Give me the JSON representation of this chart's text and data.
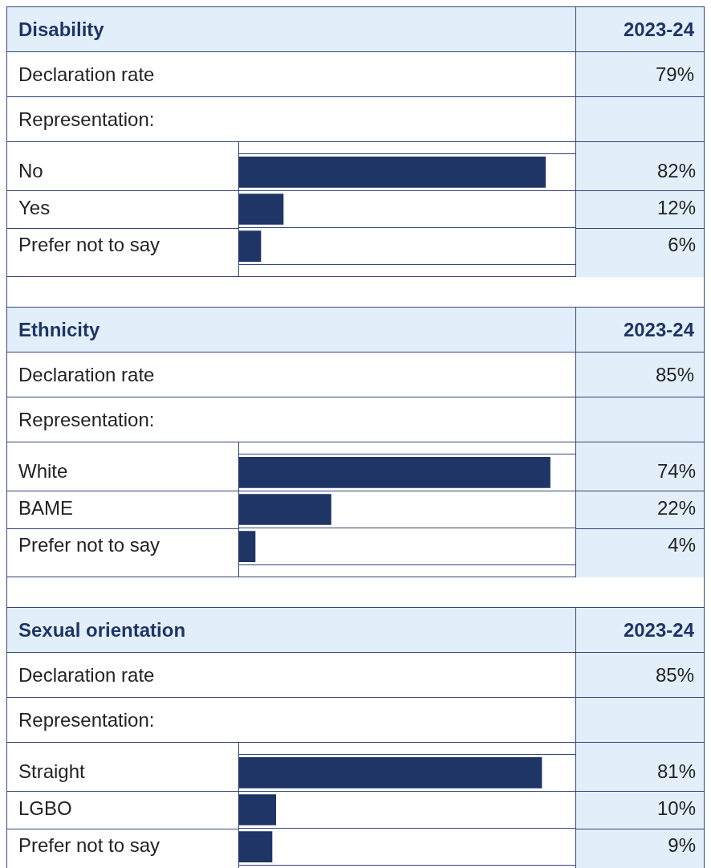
{
  "chart_data": [
    {
      "type": "bar",
      "orientation": "horizontal",
      "title": "Disability",
      "annotations": [
        "2023-24",
        "Declaration rate",
        "79%",
        "Representation:"
      ],
      "categories": [
        "No",
        "Yes",
        "Prefer not to say"
      ],
      "values": [
        82,
        12,
        6
      ],
      "value_labels": [
        "82%",
        "12%",
        "6%"
      ],
      "color": "#1f3566",
      "tick_labels": "y",
      "grid": "y",
      "legend": false
    },
    {
      "type": "bar",
      "orientation": "horizontal",
      "title": "Ethnicity",
      "annotations": [
        "2023-24",
        "Declaration rate",
        "85%",
        "Representation:"
      ],
      "categories": [
        "White",
        "BAME",
        "Prefer not to say"
      ],
      "values": [
        74,
        22,
        4
      ],
      "value_labels": [
        "74%",
        "22%",
        "4%"
      ],
      "color": "#1f3566",
      "tick_labels": "y",
      "grid": "y",
      "legend": false
    },
    {
      "type": "bar",
      "orientation": "horizontal",
      "title": "Sexual orientation",
      "annotations": [
        "2023-24",
        "Declaration rate",
        "85%",
        "Representation:"
      ],
      "categories": [
        "Straight",
        "LGBO",
        "Prefer not to say"
      ],
      "values": [
        81,
        10,
        9
      ],
      "value_labels": [
        "81%",
        "10%",
        "9%"
      ],
      "color": "#1f3566",
      "tick_labels": "y",
      "grid": "y",
      "legend": false
    }
  ]
}
